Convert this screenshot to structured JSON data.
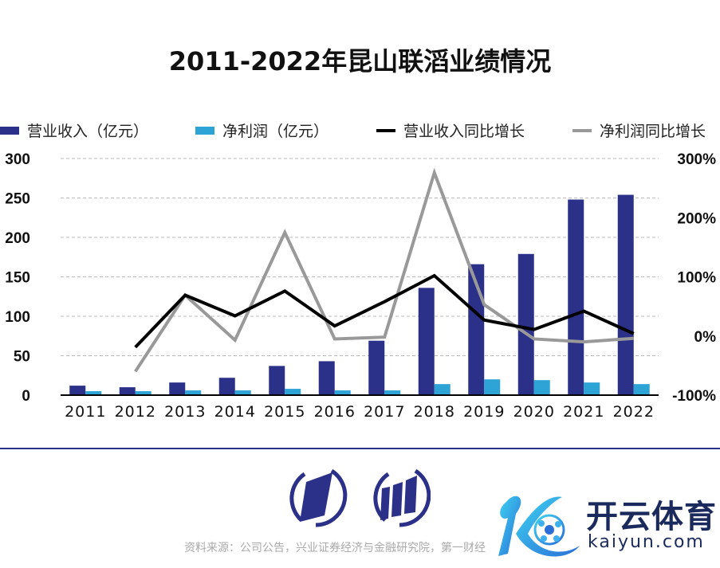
{
  "chart_data": {
    "type": "bar",
    "title": "2011-2022年昆山联滔业绩情况",
    "categories": [
      "2011",
      "2012",
      "2013",
      "2014",
      "2015",
      "2016",
      "2017",
      "2018",
      "2019",
      "2020",
      "2021",
      "2022"
    ],
    "series": [
      {
        "name": "营业收入（亿元）",
        "type": "bar",
        "axis": "left",
        "color": "#2b3088",
        "values": [
          12,
          10,
          16,
          22,
          37,
          43,
          69,
          136,
          166,
          179,
          248,
          254
        ]
      },
      {
        "name": "净利润（亿元）",
        "type": "bar",
        "axis": "left",
        "color": "#2ea3d6",
        "values": [
          5,
          5,
          6,
          6,
          8,
          6,
          6,
          14,
          20,
          19,
          16,
          14
        ]
      },
      {
        "name": "营业收入同比增长",
        "type": "line",
        "axis": "right",
        "color": "#000000",
        "values": [
          null,
          -19,
          69,
          34,
          76,
          17,
          58,
          102,
          27,
          11,
          42,
          4
        ]
      },
      {
        "name": "净利润同比增长",
        "type": "line",
        "axis": "right",
        "color": "#999999",
        "values": [
          null,
          -60,
          69,
          -7,
          175,
          -5,
          -2,
          276,
          53,
          -5,
          -10,
          -4
        ]
      }
    ],
    "left_axis": {
      "ylim": [
        0,
        300
      ],
      "ticks": [
        "0",
        "50",
        "100",
        "150",
        "200",
        "250",
        "300"
      ]
    },
    "right_axis": {
      "ylim": [
        -100,
        300
      ],
      "ticks": [
        "-100%",
        "0%",
        "100%",
        "200%",
        "300%"
      ]
    },
    "grid": true,
    "legend": "top"
  },
  "legend": [
    {
      "label": "营业收入（亿元）",
      "color": "#2b3088",
      "kind": "bar"
    },
    {
      "label": "净利润（亿元）",
      "color": "#2ea3d6",
      "kind": "bar"
    },
    {
      "label": "营业收入同比增长",
      "color": "#000000",
      "kind": "line"
    },
    {
      "label": "净利润同比增长",
      "color": "#999999",
      "kind": "line"
    }
  ],
  "footer": {
    "source": "资料来源：公司公告，兴业证券经济与金融研究院，第一财经"
  },
  "watermark": {
    "brand_cn": "开云体育",
    "brand_en": "kaiyun.com"
  }
}
